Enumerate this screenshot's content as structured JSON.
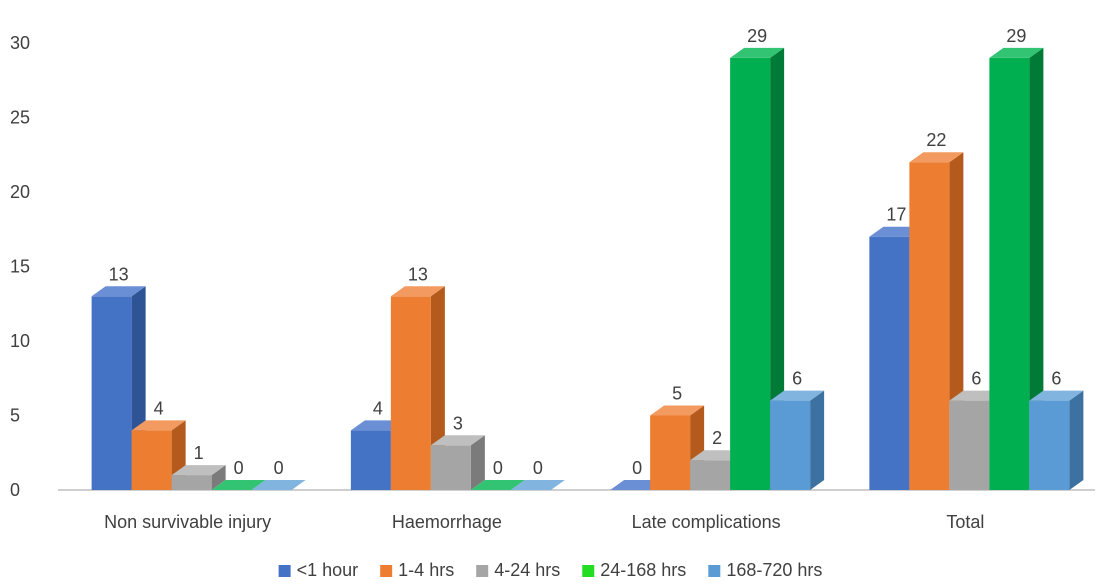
{
  "chart_data": {
    "type": "bar",
    "categories": [
      "Non survivable injury",
      "Haemorrhage",
      "Late complications",
      "Total"
    ],
    "series": [
      {
        "name": "<1 hour",
        "values": [
          13,
          4,
          0,
          17
        ],
        "color": "#4472C4",
        "side": "#2F5496",
        "top": "#6A8FD4"
      },
      {
        "name": "1-4 hrs",
        "values": [
          4,
          13,
          5,
          22
        ],
        "color": "#ED7D31",
        "side": "#B55A1D",
        "top": "#F29A5F"
      },
      {
        "name": "4-24 hrs",
        "values": [
          1,
          3,
          2,
          6
        ],
        "color": "#A5A5A5",
        "side": "#7B7B7B",
        "top": "#BFBFBF"
      },
      {
        "name": "24-168 hrs",
        "values": [
          0,
          0,
          29,
          29
        ],
        "color": "#00B050",
        "side": "#007A37",
        "top": "#33C473"
      },
      {
        "name": "168-720 hrs",
        "values": [
          0,
          0,
          6,
          6
        ],
        "color": "#5B9BD5",
        "side": "#3D71A2",
        "top": "#82B4E0"
      }
    ],
    "legend_swatch_colors": [
      "#4472C4",
      "#ED7D31",
      "#A5A5A5",
      "#22DD22",
      "#5B9BD5"
    ],
    "ylim": [
      0,
      30
    ],
    "yticks": [
      0,
      5,
      10,
      15,
      20,
      25,
      30
    ],
    "title": "",
    "xlabel": "",
    "ylabel": "",
    "legend_position": "bottom",
    "grid": false,
    "style": "3d-clustered-column"
  }
}
